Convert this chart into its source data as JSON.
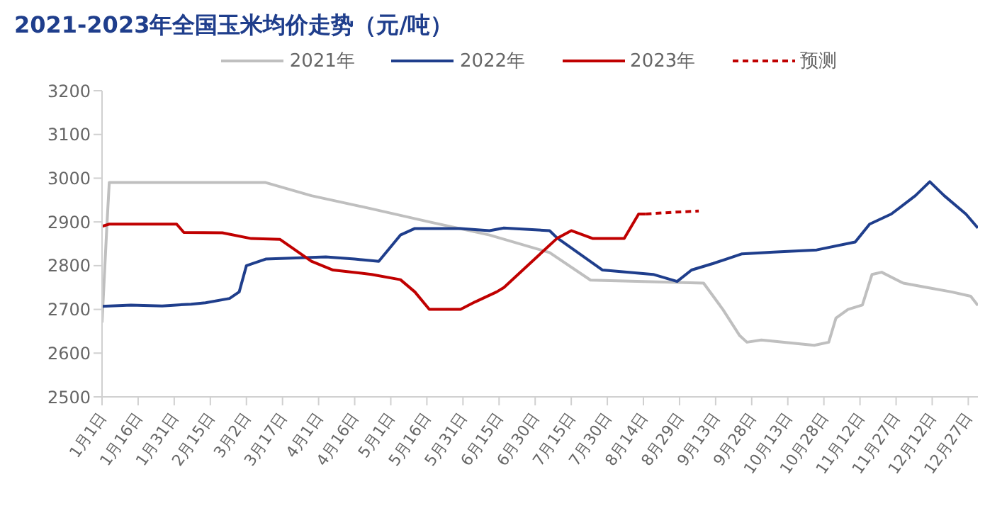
{
  "chart_data": {
    "type": "line",
    "title": "2021-2023年全国玉米均价走势（元/吨）",
    "xlim": [
      "--01-01",
      "--12-31"
    ],
    "xticks": [
      {
        "value": "--01-01",
        "label": "1月1日"
      },
      {
        "value": "--01-16",
        "label": "1月16日"
      },
      {
        "value": "--01-31",
        "label": "1月31日"
      },
      {
        "value": "--02-15",
        "label": "2月15日"
      },
      {
        "value": "--03-02",
        "label": "3月2日"
      },
      {
        "value": "--03-17",
        "label": "3月17日"
      },
      {
        "value": "--04-01",
        "label": "4月1日"
      },
      {
        "value": "--04-16",
        "label": "4月16日"
      },
      {
        "value": "--05-01",
        "label": "5月1日"
      },
      {
        "value": "--05-16",
        "label": "5月16日"
      },
      {
        "value": "--05-31",
        "label": "5月31日"
      },
      {
        "value": "--06-15",
        "label": "6月15日"
      },
      {
        "value": "--06-30",
        "label": "6月30日"
      },
      {
        "value": "--07-15",
        "label": "7月15日"
      },
      {
        "value": "--07-30",
        "label": "7月30日"
      },
      {
        "value": "--08-14",
        "label": "8月14日"
      },
      {
        "value": "--08-29",
        "label": "8月29日"
      },
      {
        "value": "--09-13",
        "label": "9月13日"
      },
      {
        "value": "--09-28",
        "label": "9月28日"
      },
      {
        "value": "--10-13",
        "label": "10月13日"
      },
      {
        "value": "--10-28",
        "label": "10月28日"
      },
      {
        "value": "--11-12",
        "label": "11月12日"
      },
      {
        "value": "--11-27",
        "label": "11月27日"
      },
      {
        "value": "--12-12",
        "label": "12月12日"
      },
      {
        "value": "--12-27",
        "label": "12月27日"
      }
    ],
    "ylim": [
      2500,
      3200
    ],
    "yticks": [
      2500,
      2600,
      2700,
      2800,
      2900,
      3000,
      3100,
      3200
    ],
    "legend": "top",
    "series": [
      {
        "name": "2021年",
        "color": "#bfbfbf",
        "x": [
          "--01-01",
          "--01-03",
          "--01-04",
          "--03-10",
          "--03-29",
          "--04-23",
          "--05-17",
          "--06-11",
          "--07-06",
          "--07-23",
          "--09-08",
          "--09-16",
          "--09-23",
          "--09-26",
          "--10-02",
          "--10-24",
          "--10-30",
          "--11-02",
          "--11-07",
          "--11-13",
          "--11-17",
          "--11-21",
          "--11-30",
          "--12-10",
          "--12-20",
          "--12-28",
          "--12-31"
        ],
        "values": [
          2670,
          2890,
          2990,
          2990,
          2960,
          2930,
          2900,
          2870,
          2830,
          2767,
          2760,
          2700,
          2640,
          2625,
          2630,
          2618,
          2625,
          2680,
          2700,
          2710,
          2780,
          2785,
          2760,
          2750,
          2740,
          2730,
          2709
        ]
      },
      {
        "name": "2022年",
        "color": "#1f3e8c",
        "x": [
          "--01-01",
          "--01-13",
          "--01-26",
          "--02-07",
          "--02-13",
          "--02-23",
          "--02-27",
          "--03-02",
          "--03-10",
          "--04-04",
          "--04-16",
          "--04-26",
          "--05-05",
          "--05-11",
          "--05-30",
          "--06-11",
          "--06-17",
          "--07-06",
          "--07-09",
          "--07-28",
          "--08-18",
          "--08-28",
          "--09-03",
          "--09-12",
          "--09-24",
          "--10-07",
          "--10-25",
          "--11-10",
          "--11-16",
          "--11-25",
          "--12-05",
          "--12-11",
          "--12-17",
          "--12-26",
          "--12-31"
        ],
        "values": [
          2707,
          2710,
          2708,
          2712,
          2715,
          2725,
          2740,
          2800,
          2815,
          2820,
          2815,
          2810,
          2870,
          2885,
          2885,
          2880,
          2886,
          2880,
          2864,
          2790,
          2780,
          2764,
          2790,
          2805,
          2827,
          2831,
          2836,
          2854,
          2895,
          2918,
          2960,
          2992,
          2960,
          2918,
          2886
        ]
      },
      {
        "name": "2023年",
        "color": "#c00000",
        "x": [
          "--01-01",
          "--01-04",
          "--02-01",
          "--02-04",
          "--02-20",
          "--03-04",
          "--03-16",
          "--03-29",
          "--04-07",
          "--04-23",
          "--05-05",
          "--05-11",
          "--05-17",
          "--05-30",
          "--06-05",
          "--06-14",
          "--06-17",
          "--07-09",
          "--07-15",
          "--07-24",
          "--08-06",
          "--08-12",
          "--08-15"
        ],
        "values": [
          2890,
          2895,
          2895,
          2876,
          2875,
          2862,
          2860,
          2810,
          2790,
          2780,
          2768,
          2740,
          2700,
          2700,
          2717,
          2740,
          2750,
          2862,
          2880,
          2862,
          2862,
          2918,
          2918
        ]
      },
      {
        "name": "预测",
        "color": "#c00000",
        "line_style": "dashed",
        "x": [
          "--08-15",
          "--08-26",
          "--09-06"
        ],
        "values": [
          2918,
          2922,
          2925
        ]
      }
    ]
  }
}
